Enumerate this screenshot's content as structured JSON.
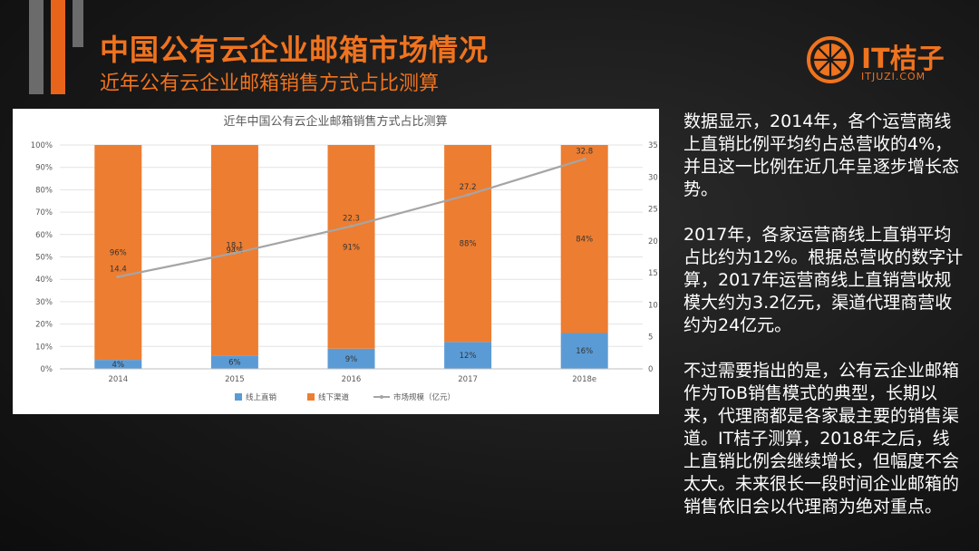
{
  "header": {
    "title": "中国公有云企业邮箱市场情况",
    "subtitle": "近年公有云企业邮箱销售方式占比测算"
  },
  "logo": {
    "name": "IT桔子",
    "domain": "ITJUZI.COM"
  },
  "colors": {
    "accent": "#f0731e",
    "online": "#5b9bd5",
    "offline": "#ed7d31",
    "market": "#a5a5a5"
  },
  "chart_data": {
    "type": "bar",
    "stacked": true,
    "title": "近年中国公有云企业邮箱销售方式占比测算",
    "categories": [
      "2014",
      "2015",
      "2016",
      "2017",
      "2018e"
    ],
    "series": [
      {
        "name": "线上直销",
        "values": [
          4,
          6,
          9,
          12,
          16
        ],
        "labels": [
          "4%",
          "6%",
          "9%",
          "12%",
          "16%"
        ]
      },
      {
        "name": "线下渠道",
        "values": [
          96,
          94,
          91,
          88,
          84
        ],
        "labels": [
          "96%",
          "94%",
          "91%",
          "88%",
          "84%"
        ]
      },
      {
        "name": "市场规模（亿元）",
        "type": "line",
        "axis": "right",
        "values": [
          14.4,
          18.1,
          22.3,
          27.2,
          32.8
        ],
        "labels": [
          "14.4",
          "18.1",
          "22.3",
          "27.2",
          "32.8"
        ]
      }
    ],
    "ylim": [
      0,
      100
    ],
    "yticks": [
      "0%",
      "10%",
      "20%",
      "30%",
      "40%",
      "50%",
      "60%",
      "70%",
      "80%",
      "90%",
      "100%"
    ],
    "y2lim": [
      0,
      35
    ],
    "y2ticks": [
      "0",
      "5",
      "10",
      "15",
      "20",
      "25",
      "30",
      "35"
    ],
    "legend": "bottom"
  },
  "paragraphs": [
    "数据显示，2014年，各个运营商线上直销比例平均约占总营收的4%，并且这一比例在近几年呈逐步增长态势。",
    "2017年，各家运营商线上直销平均占比约为12%。根据总营收的数字计算，2017年运营商线上直销营收规模大约为3.2亿元，渠道代理商营收约为24亿元。",
    "不过需要指出的是，公有云企业邮箱作为ToB销售模式的典型，长期以来，代理商都是各家最主要的销售渠道。IT桔子测算，2018年之后，线上直销比例会继续增长，但幅度不会太大。未来很长一段时间企业邮箱的销售依旧会以代理商为绝对重点。"
  ]
}
